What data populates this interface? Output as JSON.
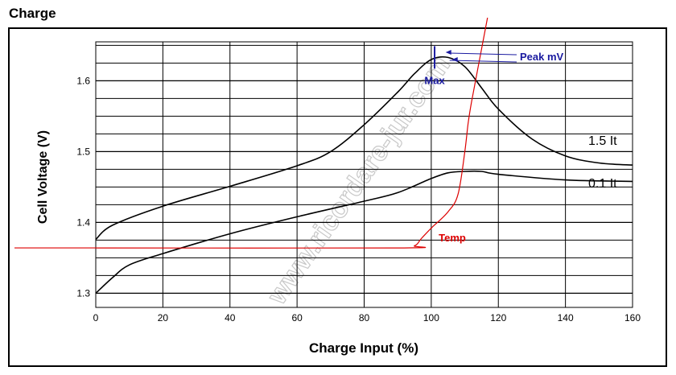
{
  "page_title": "Charge",
  "watermark": "www.ricordare-jur.com",
  "colors": {
    "frame": "#000000",
    "grid": "#000000",
    "curve": "#000000",
    "temp": "#dd0000",
    "annotation": "#1a1aa0",
    "watermark": "#c8c8c8"
  },
  "chart_data": {
    "type": "line",
    "title": "",
    "xlabel": "Charge Input (%)",
    "ylabel": "Cell Voltage (V)",
    "xlim": [
      0,
      160
    ],
    "ylim": [
      1.28,
      1.655
    ],
    "x_ticks": [
      0,
      20,
      40,
      60,
      80,
      100,
      120,
      140,
      160
    ],
    "x_tick_labels": [
      "0",
      "20",
      "40",
      "60",
      "80",
      "100",
      "120",
      "140",
      "160"
    ],
    "y_ticks": [
      1.3,
      1.4,
      1.5,
      1.6
    ],
    "y_tick_labels": [
      "1.3",
      "1.4",
      "1.5",
      "1.6"
    ],
    "grid": true,
    "series": [
      {
        "name": "1.5 It",
        "x": [
          0,
          5,
          20,
          40,
          60,
          70,
          80,
          90,
          95,
          100,
          105,
          110,
          115,
          120,
          130,
          140,
          150,
          160
        ],
        "y": [
          1.376,
          1.396,
          1.423,
          1.451,
          1.48,
          1.5,
          1.538,
          1.584,
          1.61,
          1.63,
          1.633,
          1.62,
          1.59,
          1.56,
          1.518,
          1.494,
          1.484,
          1.481
        ]
      },
      {
        "name": "0.1 It",
        "x": [
          0,
          5,
          10,
          20,
          40,
          60,
          80,
          90,
          100,
          105,
          110,
          115,
          120,
          140,
          160
        ],
        "y": [
          1.3,
          1.322,
          1.34,
          1.356,
          1.384,
          1.408,
          1.43,
          1.442,
          1.462,
          1.47,
          1.472,
          1.472,
          1.468,
          1.46,
          1.458
        ]
      },
      {
        "name": "Temp",
        "x": [
          0,
          90,
          95,
          97,
          100,
          105,
          108,
          110,
          111,
          112,
          114,
          116,
          118
        ],
        "y": [
          1.364,
          1.364,
          1.367,
          1.377,
          1.392,
          1.415,
          1.44,
          1.5,
          1.54,
          1.57,
          1.62,
          1.67,
          1.72
        ]
      }
    ],
    "annotations": [
      {
        "text": "Peak mV",
        "x": 105,
        "y": 1.633
      },
      {
        "text": "Max",
        "x": 101,
        "y": 1.633
      },
      {
        "text": "Temp",
        "x": 101.5,
        "y": 1.378
      },
      {
        "text": "1.5 It",
        "x": 153,
        "y": 1.5
      },
      {
        "text": "0.1 It",
        "x": 153,
        "y": 1.44
      }
    ]
  }
}
